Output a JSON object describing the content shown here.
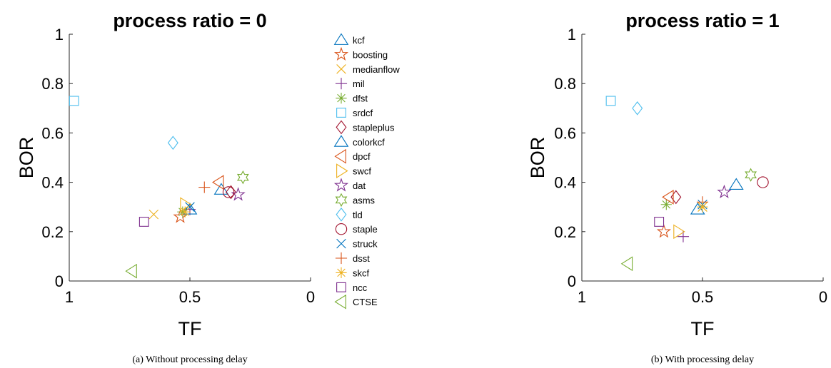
{
  "captions": [
    "(a) Without processing delay",
    "(b) With processing delay"
  ],
  "series_styles": [
    {
      "name": "kcf",
      "marker": "triangle-up",
      "color": "#0072BD"
    },
    {
      "name": "boosting",
      "marker": "pentagram",
      "color": "#D95319"
    },
    {
      "name": "medianflow",
      "marker": "x",
      "color": "#EDB120"
    },
    {
      "name": "mil",
      "marker": "plus",
      "color": "#7E2F8E"
    },
    {
      "name": "dfst",
      "marker": "asterisk",
      "color": "#77AC30"
    },
    {
      "name": "srdcf",
      "marker": "square",
      "color": "#4DBEEE"
    },
    {
      "name": "stapleplus",
      "marker": "diamond",
      "color": "#A2142F"
    },
    {
      "name": "colorkcf",
      "marker": "triangle-up",
      "color": "#0072BD"
    },
    {
      "name": "dpcf",
      "marker": "triangle-left",
      "color": "#D95319"
    },
    {
      "name": "swcf",
      "marker": "triangle-right",
      "color": "#EDB120"
    },
    {
      "name": "dat",
      "marker": "pentagram",
      "color": "#7E2F8E"
    },
    {
      "name": "asms",
      "marker": "hexagram",
      "color": "#77AC30"
    },
    {
      "name": "tld",
      "marker": "diamond",
      "color": "#4DBEEE"
    },
    {
      "name": "staple",
      "marker": "circle",
      "color": "#A2142F"
    },
    {
      "name": "struck",
      "marker": "x",
      "color": "#0072BD"
    },
    {
      "name": "dsst",
      "marker": "plus",
      "color": "#D95319"
    },
    {
      "name": "skcf",
      "marker": "asterisk",
      "color": "#EDB120"
    },
    {
      "name": "ncc",
      "marker": "square",
      "color": "#7E2F8E"
    },
    {
      "name": "CTSE",
      "marker": "triangle-left",
      "color": "#77AC30"
    }
  ],
  "chart_data": [
    {
      "type": "scatter",
      "title": "process ratio = 0",
      "xlabel": "TF",
      "ylabel": "BOR",
      "xlim": [
        1,
        0
      ],
      "ylim": [
        0,
        1
      ],
      "x_reversed": true,
      "xticks": [
        1,
        0.5,
        0
      ],
      "xtick_labels": [
        "1",
        "0.5",
        "0"
      ],
      "yticks": [
        0,
        0.2,
        0.4,
        0.6,
        0.8,
        1
      ],
      "ytick_labels": [
        "0",
        "0.2",
        "0.4",
        "0.6",
        "0.8",
        "1"
      ],
      "grid": false,
      "legend_position": "outside-right",
      "series": [
        {
          "name": "kcf",
          "points": [
            [
              0.37,
              0.37
            ]
          ]
        },
        {
          "name": "boosting",
          "points": [
            [
              0.54,
              0.26
            ]
          ]
        },
        {
          "name": "medianflow",
          "points": [
            [
              0.65,
              0.27
            ]
          ]
        },
        {
          "name": "mil",
          "points": [
            [
              0.5,
              0.29
            ]
          ]
        },
        {
          "name": "dfst",
          "points": [
            [
              0.53,
              0.28
            ]
          ]
        },
        {
          "name": "srdcf",
          "points": [
            [
              0.98,
              0.73
            ]
          ]
        },
        {
          "name": "stapleplus",
          "points": [
            [
              0.33,
              0.36
            ]
          ]
        },
        {
          "name": "colorkcf",
          "points": [
            [
              0.5,
              0.29
            ]
          ]
        },
        {
          "name": "dpcf",
          "points": [
            [
              0.38,
              0.4
            ]
          ]
        },
        {
          "name": "swcf",
          "points": [
            [
              0.52,
              0.31
            ]
          ]
        },
        {
          "name": "dat",
          "points": [
            [
              0.3,
              0.35
            ]
          ]
        },
        {
          "name": "asms",
          "points": [
            [
              0.28,
              0.42
            ]
          ]
        },
        {
          "name": "tld",
          "points": [
            [
              0.57,
              0.56
            ]
          ]
        },
        {
          "name": "staple",
          "points": [
            [
              0.34,
              0.36
            ]
          ]
        },
        {
          "name": "struck",
          "points": [
            [
              0.5,
              0.3
            ]
          ]
        },
        {
          "name": "dsst",
          "points": [
            [
              0.44,
              0.38
            ]
          ]
        },
        {
          "name": "skcf",
          "points": [
            [
              0.52,
              0.28
            ]
          ]
        },
        {
          "name": "ncc",
          "points": [
            [
              0.69,
              0.24
            ]
          ]
        },
        {
          "name": "CTSE",
          "points": [
            [
              0.74,
              0.04
            ]
          ]
        }
      ]
    },
    {
      "type": "scatter",
      "title": "process ratio = 1",
      "xlabel": "TF",
      "ylabel": "BOR",
      "xlim": [
        1,
        0
      ],
      "ylim": [
        0,
        1
      ],
      "x_reversed": true,
      "xticks": [
        1,
        0.5,
        0
      ],
      "xtick_labels": [
        "1",
        "0.5",
        "0"
      ],
      "yticks": [
        0,
        0.2,
        0.4,
        0.6,
        0.8,
        1
      ],
      "ytick_labels": [
        "0",
        "0.2",
        "0.4",
        "0.6",
        "0.8",
        "1"
      ],
      "grid": false,
      "series": [
        {
          "name": "kcf",
          "points": [
            [
              0.36,
              0.39
            ]
          ]
        },
        {
          "name": "boosting",
          "points": [
            [
              0.66,
              0.2
            ]
          ]
        },
        {
          "name": "medianflow",
          "points": [
            [
              0.5,
              0.3
            ]
          ]
        },
        {
          "name": "mil",
          "points": [
            [
              0.58,
              0.18
            ]
          ]
        },
        {
          "name": "dfst",
          "points": [
            [
              0.65,
              0.31
            ]
          ]
        },
        {
          "name": "srdcf",
          "points": [
            [
              0.88,
              0.73
            ]
          ]
        },
        {
          "name": "stapleplus",
          "points": [
            [
              0.61,
              0.34
            ]
          ]
        },
        {
          "name": "colorkcf",
          "points": [
            [
              0.52,
              0.29
            ]
          ]
        },
        {
          "name": "dpcf",
          "points": [
            [
              0.64,
              0.34
            ]
          ]
        },
        {
          "name": "swcf",
          "points": [
            [
              0.6,
              0.2
            ]
          ]
        },
        {
          "name": "dat",
          "points": [
            [
              0.41,
              0.36
            ]
          ]
        },
        {
          "name": "asms",
          "points": [
            [
              0.3,
              0.43
            ]
          ]
        },
        {
          "name": "tld",
          "points": [
            [
              0.77,
              0.7
            ]
          ]
        },
        {
          "name": "staple",
          "points": [
            [
              0.25,
              0.4
            ]
          ]
        },
        {
          "name": "struck",
          "points": [
            [
              0.5,
              0.31
            ]
          ]
        },
        {
          "name": "dsst",
          "points": [
            [
              0.5,
              0.32
            ]
          ]
        },
        {
          "name": "skcf",
          "points": [
            [
              0.5,
              0.3
            ]
          ]
        },
        {
          "name": "ncc",
          "points": [
            [
              0.68,
              0.24
            ]
          ]
        },
        {
          "name": "CTSE",
          "points": [
            [
              0.81,
              0.07
            ]
          ]
        }
      ]
    }
  ]
}
